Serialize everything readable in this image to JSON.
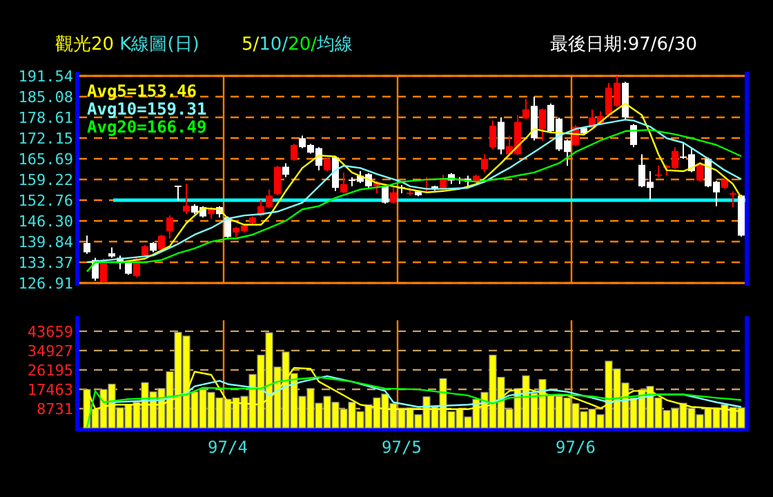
{
  "chart_data": [
    {
      "type": "candlestick",
      "title": "觀光20 K線圖(日)",
      "subtitle": "5/10/20/均線",
      "annotations": [
        "最後日期:97/6/30"
      ],
      "categories": [
        null,
        null,
        null,
        null,
        null,
        null,
        null,
        null,
        null,
        null,
        null,
        null,
        null,
        null,
        null,
        null,
        null,
        null,
        null,
        null,
        null,
        null,
        null,
        null,
        null,
        null,
        null,
        null,
        null,
        null,
        null,
        null,
        null,
        null,
        null,
        null,
        null,
        null,
        null,
        null,
        null,
        null,
        null,
        null,
        null,
        null,
        null,
        null,
        null,
        null,
        null,
        null,
        null,
        null,
        null,
        null,
        null,
        null,
        null,
        null,
        null,
        null,
        null,
        null,
        null,
        null,
        null,
        null,
        null,
        null,
        null,
        null,
        null,
        null,
        null,
        null,
        null,
        null,
        null,
        null
      ],
      "ohlc": [
        [
          139.4,
          141.7,
          136.0,
          136.5
        ],
        [
          134.1,
          134.8,
          127.6,
          128.3
        ],
        [
          127.3,
          134.5,
          127.0,
          134.1
        ],
        [
          136.2,
          138.0,
          134.8,
          135.2
        ],
        [
          134.8,
          135.5,
          131.2,
          133.1
        ],
        [
          133.4,
          133.7,
          129.5,
          129.8
        ],
        [
          129.1,
          134.8,
          128.8,
          134.5
        ],
        [
          135.5,
          138.8,
          135.2,
          138.4
        ],
        [
          139.4,
          139.7,
          136.5,
          137.0
        ],
        [
          137.4,
          142.0,
          137.1,
          141.7
        ],
        [
          143.1,
          148.0,
          140.8,
          147.4
        ],
        [
          157.3,
          157.3,
          152.6,
          156.9
        ],
        [
          149.2,
          157.9,
          148.4,
          151.0
        ],
        [
          151.0,
          151.5,
          148.4,
          148.9
        ],
        [
          150.6,
          150.9,
          147.4,
          147.7
        ],
        [
          148.4,
          150.6,
          147.0,
          150.3
        ],
        [
          150.6,
          150.9,
          147.4,
          148.4
        ],
        [
          147.4,
          147.7,
          141.0,
          141.3
        ],
        [
          142.7,
          144.4,
          141.3,
          144.1
        ],
        [
          143.1,
          145.1,
          142.7,
          144.9
        ],
        [
          145.6,
          147.7,
          145.1,
          147.4
        ],
        [
          148.0,
          152.8,
          147.7,
          150.9
        ],
        [
          150.6,
          156.1,
          150.3,
          154.2
        ],
        [
          154.6,
          163.5,
          154.3,
          163.2
        ],
        [
          163.2,
          164.3,
          159.9,
          160.7
        ],
        [
          165.4,
          170.4,
          165.1,
          170.0
        ],
        [
          172.1,
          172.9,
          169.0,
          169.3
        ],
        [
          170.0,
          170.3,
          167.3,
          167.6
        ],
        [
          169.0,
          169.3,
          162.1,
          163.5
        ],
        [
          162.1,
          166.0,
          161.8,
          165.7
        ],
        [
          166.1,
          166.4,
          155.6,
          156.6
        ],
        [
          155.2,
          161.4,
          154.9,
          157.8
        ],
        [
          159.2,
          159.9,
          157.1,
          158.9
        ],
        [
          160.4,
          161.8,
          158.1,
          158.5
        ],
        [
          160.9,
          161.2,
          156.6,
          157.1
        ],
        [
          157.1,
          158.8,
          154.9,
          158.5
        ],
        [
          157.1,
          157.3,
          151.7,
          152.0
        ],
        [
          152.0,
          157.1,
          151.7,
          155.2
        ],
        [
          156.8,
          157.5,
          154.9,
          156.5
        ],
        [
          154.8,
          156.6,
          154.2,
          155.1
        ],
        [
          155.5,
          155.8,
          154.0,
          154.3
        ],
        [
          156.1,
          159.9,
          155.2,
          156.6
        ],
        [
          157.1,
          157.3,
          155.8,
          156.1
        ],
        [
          156.3,
          160.7,
          156.1,
          159.2
        ],
        [
          160.9,
          161.2,
          157.8,
          158.9
        ],
        [
          159.4,
          159.9,
          157.8,
          159.1
        ],
        [
          159.5,
          160.4,
          157.1,
          158.5
        ],
        [
          158.5,
          160.7,
          158.2,
          160.4
        ],
        [
          162.4,
          167.1,
          161.4,
          165.7
        ],
        [
          169.3,
          177.6,
          168.6,
          176.0
        ],
        [
          177.2,
          178.6,
          167.1,
          168.6
        ],
        [
          167.1,
          172.9,
          166.8,
          169.6
        ],
        [
          167.1,
          179.3,
          166.8,
          177.2
        ],
        [
          178.3,
          184.4,
          178.0,
          181.1
        ],
        [
          182.2,
          185.1,
          171.4,
          172.1
        ],
        [
          175.0,
          181.3,
          171.4,
          181.1
        ],
        [
          182.5,
          182.9,
          173.9,
          174.3
        ],
        [
          178.2,
          178.5,
          168.1,
          168.6
        ],
        [
          171.4,
          171.7,
          163.5,
          167.8
        ],
        [
          170.0,
          176.2,
          169.7,
          175.7
        ],
        [
          175.3,
          175.6,
          173.3,
          173.6
        ],
        [
          175.3,
          181.1,
          175.0,
          178.6
        ],
        [
          176.5,
          180.5,
          176.2,
          179.0
        ],
        [
          179.3,
          189.4,
          178.6,
          187.9
        ],
        [
          182.2,
          191.5,
          181.9,
          189.4
        ],
        [
          189.4,
          189.7,
          177.9,
          178.6
        ],
        [
          176.2,
          176.5,
          169.3,
          170.0
        ],
        [
          163.8,
          167.1,
          156.8,
          157.1
        ],
        [
          158.5,
          161.8,
          152.8,
          156.6
        ],
        [
          160.5,
          163.5,
          159.9,
          160.8
        ],
        [
          162.8,
          163.8,
          160.4,
          163.5
        ],
        [
          162.8,
          169.3,
          162.5,
          168.1
        ],
        [
          166.4,
          170.7,
          165.7,
          166.1
        ],
        [
          167.1,
          169.0,
          161.5,
          161.8
        ],
        [
          158.9,
          164.5,
          158.6,
          164.2
        ],
        [
          165.7,
          166.0,
          156.8,
          157.1
        ],
        [
          158.5,
          158.8,
          150.9,
          155.2
        ],
        [
          156.6,
          159.5,
          156.3,
          159.2
        ],
        [
          154.6,
          155.5,
          150.6,
          154.9
        ],
        [
          154.2,
          154.5,
          141.4,
          141.7
        ]
      ],
      "colors": [
        "#ffffff",
        "#ffffff",
        "#ff0000",
        "#ffffff",
        "#ffffff",
        "#ffffff",
        "#ff0000",
        "#ff0000",
        "#ffffff",
        "#ff0000",
        "#ff0000",
        "#ffffff",
        "#ff0000",
        "#ffffff",
        "#ffffff",
        "#ff0000",
        "#ffffff",
        "#ffffff",
        "#ff0000",
        "#ff0000",
        "#ff0000",
        "#ff0000",
        "#ff0000",
        "#ff0000",
        "#ffffff",
        "#ff0000",
        "#ffffff",
        "#ffffff",
        "#ffffff",
        "#ff0000",
        "#ffffff",
        "#ff0000",
        "#ffffff",
        "#ffffff",
        "#ffffff",
        "#ff0000",
        "#ffffff",
        "#ff0000",
        "#ffffff",
        "#ff0000",
        "#ffffff",
        "#ff0000",
        "#ffffff",
        "#ff0000",
        "#ffffff",
        "#ffffff",
        "#ffffff",
        "#ff0000",
        "#ff0000",
        "#ff0000",
        "#ffffff",
        "#ff0000",
        "#ff0000",
        "#ff0000",
        "#ffffff",
        "#ff0000",
        "#ffffff",
        "#ffffff",
        "#ffffff",
        "#ff0000",
        "#ffffff",
        "#ff0000",
        "#ff0000",
        "#ff0000",
        "#ff0000",
        "#ffffff",
        "#ffffff",
        "#ffffff",
        "#ffffff",
        "#ff0000",
        "#ff0000",
        "#ff0000",
        "#ffffff",
        "#ffffff",
        "#ff0000",
        "#ffffff",
        "#ffffff",
        "#ff0000",
        "#ff0000",
        "#ffffff"
      ],
      "series": [
        {
          "name": "Avg5=153.46",
          "type": "line",
          "color": "#ffff00",
          "values": [
            133.4,
            null,
            null,
            null,
            133.4,
            null,
            null,
            134.5,
            null,
            null,
            138.4,
            null,
            145.6,
            null,
            150.3,
            null,
            149.9,
            147.0,
            null,
            145.1,
            null,
            145.1,
            147.7,
            null,
            155.6,
            null,
            162.8,
            null,
            166.7,
            null,
            166.4,
            null,
            161.4,
            null,
            null,
            158.1,
            null,
            157.1,
            null,
            156.1,
            null,
            155.2,
            null,
            155.6,
            null,
            156.3,
            null,
            157.8,
            159.5,
            null,
            164.3,
            null,
            169.6,
            172.1,
            175.0,
            null,
            173.9,
            null,
            173.6,
            null,
            173.2,
            175.0,
            null,
            179.3,
            null,
            182.9,
            null,
            179.3,
            173.6,
            167.1,
            162.1,
            null,
            161.8,
            162.8,
            164.3,
            null,
            162.1,
            null,
            157.8,
            153.5
          ]
        },
        {
          "name": "Avg10=159.31",
          "type": "line",
          "color": "#80ffff",
          "values": [
            133.4,
            null,
            null,
            null,
            null,
            null,
            null,
            null,
            135.5,
            null,
            null,
            139.1,
            null,
            142.0,
            null,
            144.1,
            null,
            147.0,
            null,
            148.0,
            null,
            148.4,
            null,
            149.2,
            null,
            null,
            152.0,
            null,
            null,
            null,
            162.1,
            163.5,
            null,
            162.8,
            null,
            160.9,
            null,
            null,
            158.5,
            157.1,
            null,
            156.3,
            null,
            156.3,
            null,
            null,
            156.6,
            null,
            158.5,
            null,
            161.4,
            162.8,
            null,
            null,
            167.8,
            null,
            null,
            172.9,
            null,
            175.0,
            null,
            null,
            176.5,
            null,
            null,
            177.9,
            177.6,
            null,
            175.7,
            null,
            172.1,
            null,
            170.7,
            null,
            null,
            165.7,
            null,
            162.1,
            null,
            159.3
          ]
        },
        {
          "name": "Avg20=166.49",
          "type": "line",
          "color": "#00ff00",
          "values": [
            130.5,
            133.4,
            null,
            null,
            null,
            null,
            null,
            133.4,
            null,
            134.1,
            null,
            136.2,
            null,
            137.7,
            null,
            139.8,
            null,
            140.8,
            140.8,
            null,
            142.0,
            null,
            144.1,
            null,
            146.3,
            null,
            149.9,
            null,
            150.9,
            null,
            153.5,
            null,
            null,
            156.1,
            null,
            null,
            157.1,
            null,
            158.5,
            null,
            null,
            159.2,
            null,
            null,
            159.5,
            null,
            null,
            158.5,
            null,
            null,
            159.5,
            null,
            null,
            null,
            161.4,
            null,
            null,
            164.3,
            null,
            167.8,
            null,
            null,
            171.4,
            null,
            null,
            174.3,
            null,
            null,
            174.7,
            null,
            null,
            173.3,
            null,
            172.1,
            null,
            null,
            170.0,
            null,
            null,
            166.5
          ]
        }
      ],
      "ylim": [
        126.91,
        191.54
      ],
      "yticks": [
        126.91,
        133.37,
        139.84,
        {
          "value": 146.3,
          "label": "146.30"
        },
        152.76,
        159.22,
        165.69,
        172.15,
        178.61,
        185.08,
        191.54
      ],
      "ref_lines": [
        {
          "axis": "y",
          "value": 152.76,
          "color": "#00ffff"
        }
      ],
      "grid": true,
      "legend": "top left",
      "tick_labels": "y"
    },
    {
      "type": "bar",
      "color": "#ffff00",
      "categories": [
        null,
        null,
        null,
        null,
        null,
        null,
        null,
        null,
        null,
        null,
        null,
        null,
        null,
        null,
        null,
        null,
        null,
        "97/4",
        null,
        null,
        null,
        null,
        null,
        null,
        null,
        null,
        null,
        null,
        null,
        null,
        null,
        null,
        null,
        null,
        null,
        null,
        null,
        null,
        "97/5",
        null,
        null,
        null,
        null,
        null,
        null,
        null,
        null,
        null,
        null,
        null,
        null,
        null,
        null,
        null,
        null,
        null,
        null,
        null,
        null,
        "97/6",
        null,
        null,
        null,
        null,
        null,
        null,
        null,
        null,
        null,
        null,
        null,
        null,
        null,
        null,
        null,
        null,
        null,
        null,
        null,
        null
      ],
      "values": [
        17400,
        8500,
        17400,
        19800,
        9100,
        10500,
        11600,
        20500,
        16300,
        17800,
        25400,
        43200,
        41500,
        16300,
        17400,
        16100,
        13600,
        13000,
        13600,
        14300,
        24200,
        32900,
        43000,
        27500,
        34300,
        24600,
        14300,
        17800,
        11200,
        14300,
        11600,
        8500,
        11600,
        7400,
        10500,
        13600,
        15300,
        11000,
        8900,
        9100,
        6000,
        14100,
        9500,
        22300,
        7400,
        8500,
        5000,
        13000,
        16100,
        32900,
        22900,
        8500,
        17800,
        23600,
        15700,
        21900,
        15100,
        14300,
        13600,
        11000,
        7400,
        8500,
        6000,
        30200,
        26700,
        20300,
        13600,
        17200,
        18800,
        13600,
        7900,
        8900,
        11200,
        8900,
        6000,
        9100,
        9100,
        10500,
        9300,
        9100
      ],
      "series": [
        {
          "type": "line",
          "color": "#ffff00",
          "values": [
            17400,
            8500,
            null,
            10500,
            null,
            null,
            10500,
            null,
            null,
            10500,
            null,
            null,
            15700,
            25400,
            null,
            24000,
            17800,
            11600,
            null,
            null,
            null,
            10500,
            null,
            16700,
            null,
            27100,
            null,
            26700,
            20900,
            null,
            null,
            14700,
            null,
            10500,
            null,
            null,
            8500,
            null,
            null,
            null,
            8500,
            null,
            null,
            null,
            null,
            null,
            8500,
            null,
            null,
            10500,
            null,
            16700,
            null,
            17800,
            null,
            null,
            14700,
            null,
            14700,
            null,
            null,
            10500,
            8900,
            null,
            null,
            null,
            16700,
            null,
            16700,
            null,
            12600,
            null,
            null,
            9500,
            null,
            null,
            null,
            8500,
            null,
            7400
          ]
        },
        {
          "type": "line",
          "color": "#80ffff",
          "values": [
            null,
            null,
            null,
            11600,
            null,
            null,
            null,
            null,
            null,
            12600,
            null,
            null,
            15700,
            18800,
            null,
            null,
            21300,
            19800,
            null,
            null,
            null,
            17800,
            14700,
            null,
            18800,
            null,
            20900,
            null,
            null,
            23400,
            null,
            null,
            20900,
            null,
            null,
            null,
            16700,
            11600,
            null,
            null,
            9500,
            null,
            null,
            null,
            null,
            null,
            10500,
            null,
            null,
            11600,
            null,
            14700,
            null,
            null,
            null,
            null,
            17200,
            null,
            16300,
            null,
            null,
            13600,
            null,
            11600,
            null,
            null,
            13000,
            null,
            null,
            15100,
            null,
            null,
            15100,
            null,
            null,
            null,
            11600,
            null,
            null,
            9500
          ]
        },
        {
          "type": "line",
          "color": "#00ff00",
          "values": [
            200,
            16700,
            11600,
            null,
            null,
            13000,
            null,
            null,
            null,
            13600,
            null,
            null,
            15100,
            null,
            18200,
            null,
            null,
            17800,
            null,
            null,
            null,
            17800,
            null,
            20900,
            null,
            21900,
            null,
            null,
            22900,
            null,
            null,
            null,
            20900,
            null,
            null,
            null,
            17800,
            null,
            null,
            null,
            17400,
            null,
            null,
            null,
            null,
            null,
            14700,
            null,
            null,
            11000,
            null,
            13600,
            null,
            null,
            null,
            null,
            null,
            15100,
            null,
            null,
            null,
            14300,
            null,
            13000,
            null,
            null,
            null,
            null,
            15100,
            null,
            null,
            null,
            15100,
            null,
            null,
            null,
            13600,
            null,
            null,
            12600
          ]
        }
      ],
      "ylim": [
        0,
        48600
      ],
      "yticks": [
        8731,
        17463,
        26195,
        34927,
        43659
      ],
      "grid": true
    }
  ]
}
